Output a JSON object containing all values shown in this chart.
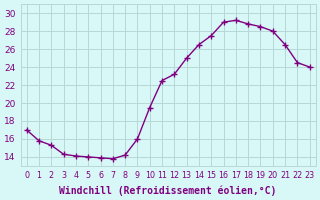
{
  "x": [
    0,
    1,
    2,
    3,
    4,
    5,
    6,
    7,
    8,
    9,
    10,
    11,
    12,
    13,
    14,
    15,
    16,
    17,
    18,
    19,
    20,
    21,
    22,
    23
  ],
  "y": [
    17.0,
    15.8,
    15.3,
    14.3,
    14.1,
    14.0,
    13.9,
    13.8,
    14.2,
    16.0,
    19.5,
    22.5,
    23.2,
    25.0,
    26.5,
    27.5,
    29.0,
    29.2,
    28.8,
    28.5,
    28.0,
    26.5,
    24.5,
    24.0
  ],
  "line_color": "#800080",
  "marker": "+",
  "markersize": 4,
  "linewidth": 1.0,
  "xlabel": "Windchill (Refroidissement éolien,°C)",
  "ylabel": "",
  "title": "",
  "xlim": [
    -0.5,
    23.5
  ],
  "ylim": [
    13.0,
    31.0
  ],
  "yticks": [
    14,
    16,
    18,
    20,
    22,
    24,
    26,
    28,
    30
  ],
  "xticks": [
    0,
    1,
    2,
    3,
    4,
    5,
    6,
    7,
    8,
    9,
    10,
    11,
    12,
    13,
    14,
    15,
    16,
    17,
    18,
    19,
    20,
    21,
    22,
    23
  ],
  "bg_color": "#d8f8f8",
  "grid_color": "#b8d8d8",
  "tick_color": "#800080",
  "label_color": "#800080",
  "xlabel_fontsize": 7.0,
  "ytick_fontsize": 6.5,
  "xtick_fontsize": 5.8
}
